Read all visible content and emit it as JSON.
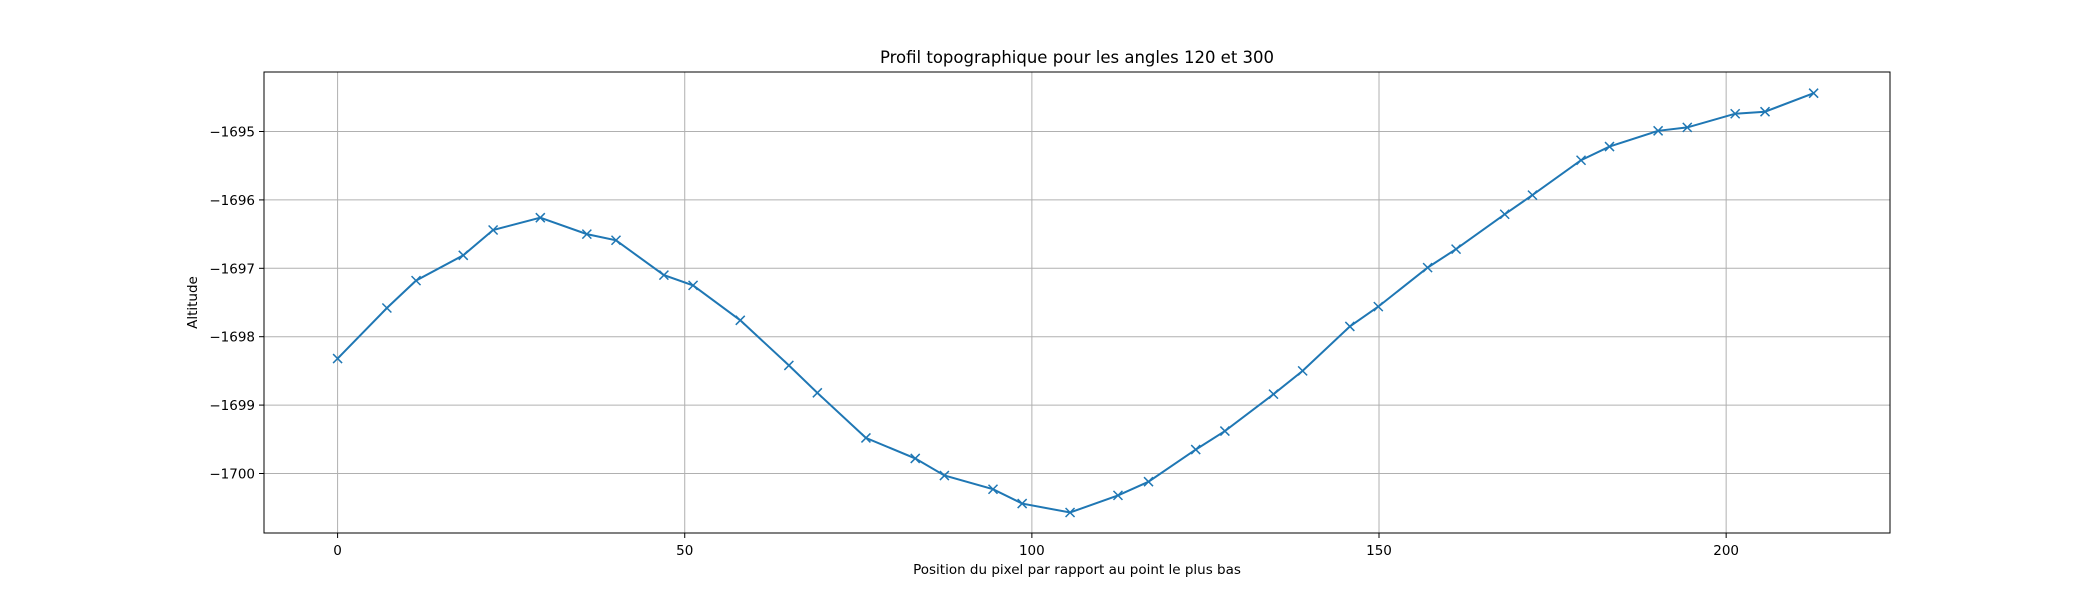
{
  "chart_data": {
    "type": "line",
    "title": "Profil topographique pour les angles 120 et 300",
    "xlabel": "Position du pixel par rapport au point le plus bas",
    "ylabel": "Altitude",
    "xlim": [
      -10.6,
      223.6
    ],
    "ylim": [
      -1700.87,
      -1694.13
    ],
    "xticks": [
      0,
      50,
      100,
      150,
      200
    ],
    "yticks": [
      -1695,
      -1696,
      -1697,
      -1698,
      -1699,
      -1700
    ],
    "grid": true,
    "marker": "x",
    "line_color": "#1f77b4",
    "series": [
      {
        "x": [
          0,
          7.1,
          11.3,
          18.1,
          22.4,
          29.2,
          35.9,
          40.1,
          47.0,
          51.2,
          58.0,
          65.0,
          69.1,
          76.1,
          83.2,
          87.4,
          94.4,
          98.6,
          105.5,
          112.4,
          116.8,
          123.6,
          127.8,
          134.8,
          139.0,
          145.8,
          149.9,
          157.0,
          161.1,
          168.1,
          172.1,
          179.1,
          183.2,
          190.2,
          194.4,
          201.3,
          205.6,
          212.6
        ],
        "y": [
          -1698.32,
          -1697.58,
          -1697.18,
          -1696.81,
          -1696.44,
          -1696.26,
          -1696.5,
          -1696.59,
          -1697.1,
          -1697.25,
          -1697.76,
          -1698.42,
          -1698.82,
          -1699.48,
          -1699.78,
          -1700.03,
          -1700.23,
          -1700.44,
          -1700.57,
          -1700.32,
          -1700.12,
          -1699.65,
          -1699.38,
          -1698.84,
          -1698.5,
          -1697.85,
          -1697.56,
          -1696.99,
          -1696.72,
          -1696.21,
          -1695.93,
          -1695.42,
          -1695.22,
          -1694.99,
          -1694.94,
          -1694.74,
          -1694.71,
          -1694.44
        ]
      }
    ]
  }
}
